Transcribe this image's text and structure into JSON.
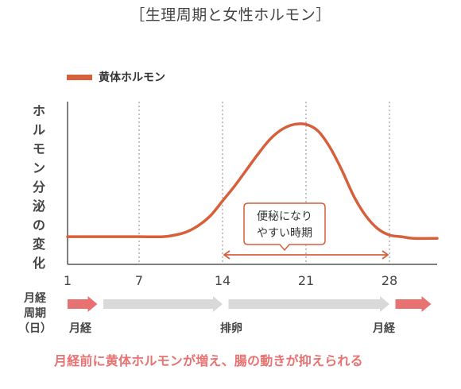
{
  "page": {
    "title": "［生理周期と女性ホルモン］",
    "note": "月経前に黄体ホルモンが増え、腸の動きが抑えられる"
  },
  "colors": {
    "curve": "#d65f3c",
    "axis": "#555555",
    "grid": "#888888",
    "arrow_red": "#e87272",
    "arrow_gray": "#d9d9d9"
  },
  "chart_data": {
    "type": "line",
    "title": "［生理周期と女性ホルモン］",
    "xlabel": "",
    "ylabel": "ホルモン分泌の変化",
    "xlim": [
      1,
      32
    ],
    "ylim": [
      0,
      1
    ],
    "x_ticks": [
      1,
      7,
      14,
      21,
      28
    ],
    "grid_x": [
      7,
      14,
      21,
      28
    ],
    "series": [
      {
        "name": "黄体ホルモン",
        "color": "#d65f3c",
        "x": [
          1,
          3,
          5,
          7,
          9,
          10,
          11,
          12,
          13,
          14,
          15,
          16,
          17,
          18,
          19,
          20,
          21,
          22,
          23,
          24,
          25,
          26,
          27,
          28,
          29,
          30,
          32
        ],
        "y": [
          0.17,
          0.17,
          0.17,
          0.17,
          0.17,
          0.18,
          0.2,
          0.24,
          0.3,
          0.39,
          0.48,
          0.58,
          0.68,
          0.77,
          0.83,
          0.86,
          0.86,
          0.82,
          0.72,
          0.58,
          0.42,
          0.3,
          0.22,
          0.18,
          0.17,
          0.16,
          0.16
        ]
      }
    ],
    "annotation": {
      "text_line1": "便秘になり",
      "text_line2": "やすい時期",
      "x_from": 14,
      "x_to": 28
    }
  },
  "phases": {
    "label_line1": "月経",
    "label_line2": "周期",
    "label_line3": "（日）",
    "segments": [
      {
        "name": "月経",
        "from": 1,
        "to": 3.5,
        "color": "#e87272"
      },
      {
        "name": "",
        "from": 4,
        "to": 14,
        "color": "#d9d9d9"
      },
      {
        "name": "排卵",
        "from": 14.5,
        "to": 28,
        "color": "#d9d9d9"
      },
      {
        "name": "月経",
        "from": 28.5,
        "to": 31.5,
        "color": "#e87272"
      }
    ]
  }
}
